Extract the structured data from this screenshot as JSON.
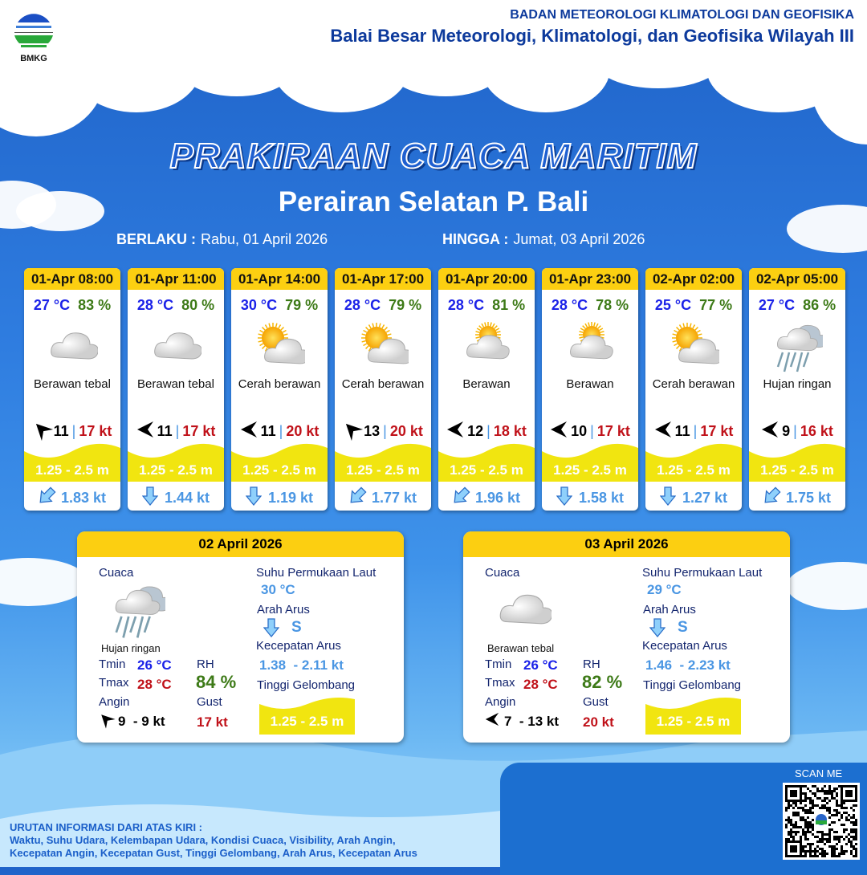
{
  "header": {
    "logo_text": "BMKG",
    "org_name": "BADAN METEOROLOGI KLIMATOLOGI DAN GEOFISIKA",
    "office_name": "Balai Besar Meteorologi, Klimatologi, dan Geofisika Wilayah III"
  },
  "title": "PRAKIRAAN CUACA MARITIM",
  "subtitle": "Perairan Selatan P. Bali",
  "validity": {
    "from_label": "BERLAKU :",
    "from_value": "Rabu, 01 April 2026",
    "to_label": "HINGGA :",
    "to_value": "Jumat, 03 April 2026"
  },
  "colors": {
    "accent_yellow": "#fccf11",
    "temp": "#1b22e8",
    "humidity": "#3d7a17",
    "gust": "#c0121a",
    "current": "#4a96e3"
  },
  "forecasts": [
    {
      "time": "01-Apr 08:00",
      "temp": "27 °C",
      "rh": "83 %",
      "icon": "cloud-icon",
      "condition": "Berawan tebal",
      "wind_dir_icon": "wind-arrow-northwest-icon",
      "wind_rot": 45,
      "wind_speed": "11",
      "gust": "17 kt",
      "wave": "1.25 - 2.5 m",
      "current_icon": "arrow-southwest-icon",
      "current_rot": 45,
      "current_speed": "1.83 kt"
    },
    {
      "time": "01-Apr 11:00",
      "temp": "28 °C",
      "rh": "80 %",
      "icon": "cloud-icon",
      "condition": "Berawan tebal",
      "wind_dir_icon": "wind-arrow-west-icon",
      "wind_rot": 0,
      "wind_speed": "11",
      "gust": "17 kt",
      "wave": "1.25 - 2.5 m",
      "current_icon": "arrow-south-icon",
      "current_rot": 0,
      "current_speed": "1.44 kt"
    },
    {
      "time": "01-Apr 14:00",
      "temp": "30 °C",
      "rh": "79 %",
      "icon": "sun-cloud-icon",
      "condition": "Cerah berawan",
      "wind_dir_icon": "wind-arrow-west-icon",
      "wind_rot": 0,
      "wind_speed": "11",
      "gust": "20 kt",
      "wave": "1.25 - 2.5 m",
      "current_icon": "arrow-south-icon",
      "current_rot": 0,
      "current_speed": "1.19 kt"
    },
    {
      "time": "01-Apr 17:00",
      "temp": "28 °C",
      "rh": "79 %",
      "icon": "sun-cloud-icon",
      "condition": "Cerah berawan",
      "wind_dir_icon": "wind-arrow-northwest-icon",
      "wind_rot": 45,
      "wind_speed": "13",
      "gust": "20 kt",
      "wave": "1.25 - 2.5 m",
      "current_icon": "arrow-southwest-icon",
      "current_rot": 45,
      "current_speed": "1.77 kt"
    },
    {
      "time": "01-Apr 20:00",
      "temp": "28 °C",
      "rh": "81 %",
      "icon": "partly-cloudy-icon",
      "condition": "Berawan",
      "wind_dir_icon": "wind-arrow-west-icon",
      "wind_rot": 0,
      "wind_speed": "12",
      "gust": "18 kt",
      "wave": "1.25 - 2.5 m",
      "current_icon": "arrow-southwest-icon",
      "current_rot": 45,
      "current_speed": "1.96 kt"
    },
    {
      "time": "01-Apr 23:00",
      "temp": "28 °C",
      "rh": "78 %",
      "icon": "partly-cloudy-icon",
      "condition": "Berawan",
      "wind_dir_icon": "wind-arrow-west-icon",
      "wind_rot": 0,
      "wind_speed": "10",
      "gust": "17 kt",
      "wave": "1.25 - 2.5 m",
      "current_icon": "arrow-south-icon",
      "current_rot": 0,
      "current_speed": "1.58 kt"
    },
    {
      "time": "02-Apr 02:00",
      "temp": "25 °C",
      "rh": "77 %",
      "icon": "sun-cloud-icon",
      "condition": "Cerah berawan",
      "wind_dir_icon": "wind-arrow-west-icon",
      "wind_rot": 0,
      "wind_speed": "11",
      "gust": "17 kt",
      "wave": "1.25 - 2.5 m",
      "current_icon": "arrow-south-icon",
      "current_rot": 0,
      "current_speed": "1.27 kt"
    },
    {
      "time": "02-Apr 05:00",
      "temp": "27 °C",
      "rh": "86 %",
      "icon": "rain-cloud-icon",
      "condition": "Hujan ringan",
      "wind_dir_icon": "wind-arrow-west-icon",
      "wind_rot": 0,
      "wind_speed": "9",
      "gust": "16 kt",
      "wave": "1.25 - 2.5 m",
      "current_icon": "arrow-southwest-icon",
      "current_rot": 45,
      "current_speed": "1.75 kt"
    }
  ],
  "daily": [
    {
      "date": "02 April 2026",
      "weather_label": "Cuaca",
      "icon": "rain-cloud-icon",
      "condition": "Hujan ringan",
      "tmin_label": "Tmin",
      "tmin": "26 °C",
      "tmax_label": "Tmax",
      "tmax": "28 °C",
      "rh_label": "RH",
      "rh": "84 %",
      "wind_label": "Angin",
      "wind_rot": 45,
      "wind": "9  - 9 kt",
      "gust_label": "Gust",
      "gust": "17 kt",
      "sst_label": "Suhu Permukaan Laut",
      "sst": "30 °C",
      "current_dir_label": "Arah Arus",
      "current_dir": "S",
      "current_speed_label": "Kecepatan Arus",
      "current_speed": "1.38  - 2.11 kt",
      "wave_label": "Tinggi Gelombang",
      "wave": "1.25 - 2.5 m"
    },
    {
      "date": "03 April 2026",
      "weather_label": "Cuaca",
      "icon": "cloud-icon",
      "condition": "Berawan tebal",
      "tmin_label": "Tmin",
      "tmin": "26 °C",
      "tmax_label": "Tmax",
      "tmax": "28 °C",
      "rh_label": "RH",
      "rh": "82 %",
      "wind_label": "Angin",
      "wind_rot": 0,
      "wind": "7  - 13 kt",
      "gust_label": "Gust",
      "gust": "20 kt",
      "sst_label": "Suhu Permukaan Laut",
      "sst": "29 °C",
      "current_dir_label": "Arah Arus",
      "current_dir": "S",
      "current_speed_label": "Kecepatan Arus",
      "current_speed": "1.46  - 2.23 kt",
      "wave_label": "Tinggi Gelombang",
      "wave": "1.25 - 2.5 m"
    }
  ],
  "footer": {
    "legend_title": "URUTAN INFORMASI DARI ATAS KIRI :",
    "legend_line1": "Waktu, Suhu Udara, Kelembapan Udara, Kondisi Cuaca, Visibility, Arah Angin,",
    "legend_line2": "Kecepatan Angin, Kecepatan Gust, Tinggi Gelombang, Arah Arus, Kecepatan Arus",
    "scan_label": "SCAN ME"
  }
}
